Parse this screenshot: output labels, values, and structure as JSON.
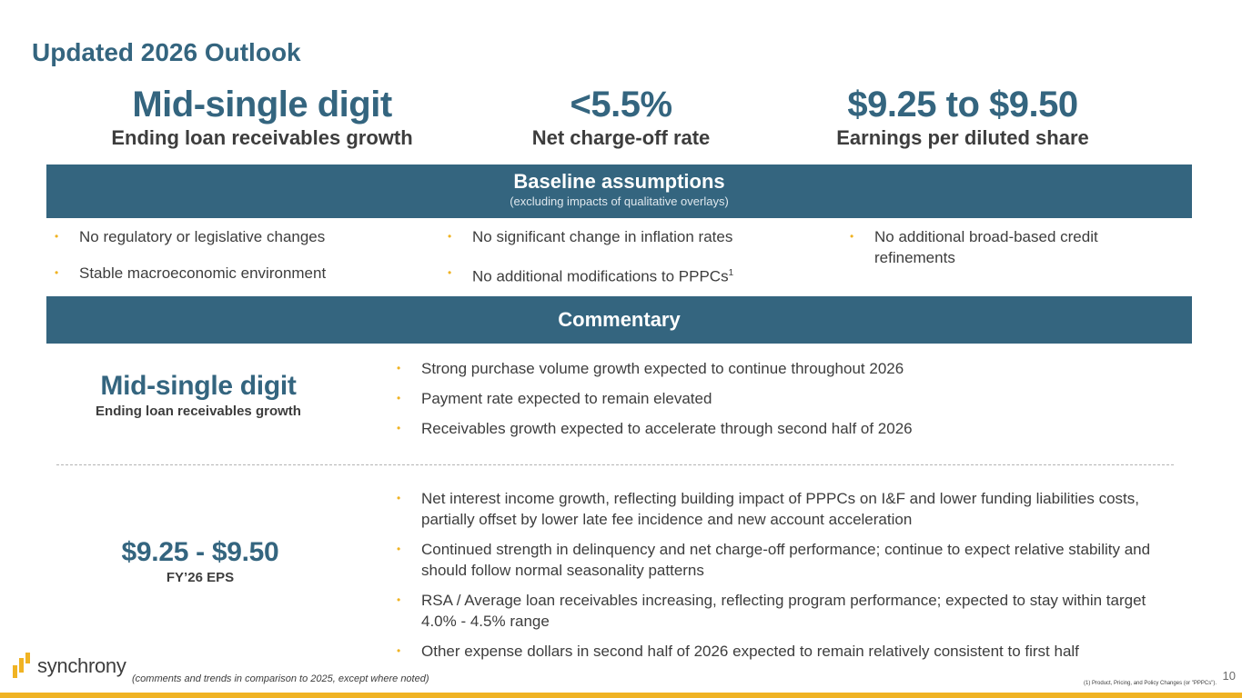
{
  "title": "Updated 2026 Outlook",
  "metrics": [
    {
      "value": "Mid-single digit",
      "label": "Ending loan receivables growth"
    },
    {
      "value": "<5.5%",
      "label": "Net charge-off rate"
    },
    {
      "value": "$9.25 to $9.50",
      "label": "Earnings per diluted share"
    }
  ],
  "baseline": {
    "title": "Baseline assumptions",
    "subtitle": "(excluding impacts of qualitative overlays)",
    "col1": [
      "No regulatory or legislative changes",
      "Stable macroeconomic environment"
    ],
    "col2": [
      "No significant change in inflation rates",
      "No additional modifications to PPPCs"
    ],
    "col2_sup": "1",
    "col3": [
      "No additional broad-based credit refinements"
    ]
  },
  "commentary": {
    "title": "Commentary",
    "section1": {
      "value": "Mid-single digit",
      "label": "Ending loan receivables growth",
      "bullets": [
        "Strong purchase volume growth expected to continue throughout 2026",
        "Payment rate expected to remain elevated",
        "Receivables growth expected to accelerate through second half of 2026"
      ]
    },
    "section2": {
      "value": "$9.25 - $9.50",
      "label": "FY’26 EPS",
      "bullets": [
        "Net interest income growth, reflecting building impact of PPPCs on I&F and lower funding liabilities costs, partially offset by lower late fee incidence and new account acceleration",
        "Continued strength in delinquency and net charge-off performance; continue to expect relative stability and should follow normal seasonality patterns",
        "RSA / Average loan receivables increasing, reflecting program performance; expected to stay within target 4.0% - 4.5% range",
        "Other expense dollars in second half of 2026 expected to remain relatively consistent to first half"
      ]
    }
  },
  "logo": {
    "text": "synchrony",
    "icon": "synchrony-logo-icon"
  },
  "footnote_left": "(comments and trends in comparison to 2025, except where noted)",
  "footnote_right": "(1) Product, Pricing, and Policy Changes (or \"PPPCs\").",
  "page_number": "10",
  "colors": {
    "primary": "#34657f",
    "accent": "#f0b323",
    "text": "#3d3d3d"
  }
}
